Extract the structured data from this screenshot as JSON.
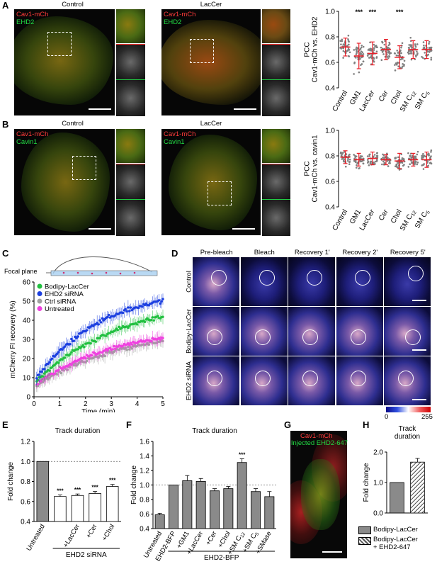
{
  "panels": {
    "A": {
      "label": "A",
      "control_title": "Control",
      "treat_title": "LacCer",
      "ch1": "Cav1-mCh",
      "ch2": "EHD2"
    },
    "B": {
      "label": "B",
      "control_title": "Control",
      "treat_title": "LacCer",
      "ch1": "Cav1-mCh",
      "ch2": "Cavin1"
    },
    "C": {
      "label": "C",
      "focal_plane": "Focal plane"
    },
    "D": {
      "label": "D",
      "columns": [
        "Pre-bleach",
        "Bleach",
        "Recovery 1'",
        "Recovery 2'",
        "Recovery 5'"
      ],
      "rows": [
        "Control",
        "Bodipy-LacCer",
        "EHD2 siRNA"
      ],
      "scale_min": "0",
      "scale_max": "255"
    },
    "E": {
      "label": "E",
      "title": "Track duration"
    },
    "F": {
      "label": "F",
      "title": "Track duration"
    },
    "G": {
      "label": "G",
      "ch1": "Cav1-mCh",
      "ch2": "Injected EHD2-647"
    },
    "H": {
      "label": "H",
      "title": "Track\nduration",
      "legend": [
        "Bodipy-LacCer",
        "Bodipy-LacCer\n+ EHD2-647"
      ]
    }
  },
  "colors": {
    "red": "#e8202a",
    "green": "#22c040",
    "blue": "#1c3fe0",
    "gray": "#a0a0a0",
    "magenta": "#f040e0",
    "bar_gray": "#8a8a8a",
    "dark_gray": "#666666"
  },
  "chart_data": [
    {
      "id": "A-scatter",
      "type": "scatter",
      "ylabel": "PCC\nCav1-mCh vs. EHD2",
      "categories": [
        "Control",
        "GM1",
        "LacCer",
        "Cer",
        "Chol",
        "SM C12",
        "SM C5"
      ],
      "category_labels": [
        [
          "Control"
        ],
        [
          "GM1"
        ],
        [
          "LacCer"
        ],
        [
          "Cer"
        ],
        [
          "Chol"
        ],
        [
          "SM C",
          "12"
        ],
        [
          "SM C",
          "5"
        ]
      ],
      "means": [
        0.72,
        0.65,
        0.67,
        0.7,
        0.64,
        0.7,
        0.7
      ],
      "sd": [
        0.07,
        0.1,
        0.09,
        0.08,
        0.09,
        0.07,
        0.07
      ],
      "significance": [
        "",
        "***",
        "***",
        "",
        "***",
        "",
        ""
      ],
      "ylim": [
        0.4,
        1.0
      ],
      "yticks": [
        0.4,
        0.6,
        0.8,
        1.0
      ]
    },
    {
      "id": "B-scatter",
      "type": "scatter",
      "ylabel": "PCC\nCav1-mCh vs. cavin1",
      "categories": [
        "Control",
        "GM1",
        "LacCer",
        "Cer",
        "Chol",
        "SM C12",
        "SM C5"
      ],
      "category_labels": [
        [
          "Control"
        ],
        [
          "GM1"
        ],
        [
          "LacCer"
        ],
        [
          "Cer"
        ],
        [
          "Chol"
        ],
        [
          "SM C",
          "12"
        ],
        [
          "SM C",
          "5"
        ]
      ],
      "means": [
        0.79,
        0.77,
        0.78,
        0.77,
        0.76,
        0.77,
        0.77
      ],
      "sd": [
        0.05,
        0.05,
        0.05,
        0.04,
        0.06,
        0.05,
        0.06
      ],
      "significance": [
        "",
        "",
        "",
        "",
        "",
        "",
        ""
      ],
      "ylim": [
        0.4,
        1.0
      ],
      "yticks": [
        0.4,
        0.6,
        0.8,
        1.0
      ]
    },
    {
      "id": "C-line",
      "type": "line",
      "xlabel": "Time (min)",
      "ylabel": "mCherry FI recovery (%)",
      "xlim": [
        0,
        5
      ],
      "ylim": [
        0,
        60
      ],
      "xticks": [
        0,
        1,
        2,
        3,
        4,
        5
      ],
      "yticks": [
        0,
        10,
        20,
        30,
        40,
        50,
        60
      ],
      "series": [
        {
          "name": "Bodipy-LacCer",
          "color": "#22c040",
          "plateau": 52,
          "k": 0.3,
          "start": 7
        },
        {
          "name": "EHD2 siRNA",
          "color": "#1c3fe0",
          "plateau": 58,
          "k": 0.38,
          "start": 8
        },
        {
          "name": "Ctrl siRNA",
          "color": "#a0a0a0",
          "plateau": 36,
          "k": 0.3,
          "start": 5
        },
        {
          "name": "Untreated",
          "color": "#f040e0",
          "plateau": 37,
          "k": 0.32,
          "start": 6
        }
      ]
    },
    {
      "id": "E-bar",
      "type": "bar",
      "title": "Track duration",
      "ylabel": "Fold change",
      "categories": [
        "Untreated",
        "",
        "+LacCer",
        "+Cer",
        "+Chol"
      ],
      "values": [
        1.0,
        0.65,
        0.66,
        0.68,
        0.75
      ],
      "errors": [
        0,
        0.015,
        0.015,
        0.02,
        0.02
      ],
      "significance": [
        "",
        "***",
        "***",
        "***",
        "***"
      ],
      "fills": [
        "#8a8a8a",
        "#ffffff",
        "#ffffff",
        "#ffffff",
        "#ffffff"
      ],
      "group_label": "EHD2 siRNA",
      "ylim": [
        0.4,
        1.2
      ],
      "yticks": [
        0.4,
        0.6,
        0.8,
        1.0,
        1.2
      ]
    },
    {
      "id": "F-bar",
      "type": "bar",
      "title": "Track duration",
      "ylabel": "Fold change",
      "categories": [
        "Untreated",
        "EHD2-BFP",
        "+GM1",
        "+LacCer",
        "+Cer",
        "+Chol",
        "+SM C12",
        "+SM C5",
        "+SMase"
      ],
      "category_labels": [
        [
          "Untreated"
        ],
        [
          "EHD2-BFP"
        ],
        [
          "+GM1"
        ],
        [
          "+LacCer"
        ],
        [
          "+Cer"
        ],
        [
          "+Chol"
        ],
        [
          "+SM C",
          "12"
        ],
        [
          "+SM C",
          "5"
        ],
        [
          "+SMase"
        ]
      ],
      "values": [
        0.59,
        1.0,
        1.06,
        1.05,
        0.92,
        0.95,
        1.31,
        0.91,
        0.84
      ],
      "errors": [
        0.02,
        0,
        0.07,
        0.04,
        0.03,
        0.03,
        0.05,
        0.04,
        0.07
      ],
      "significance": [
        "",
        "",
        "",
        "",
        "",
        "",
        "***",
        "",
        ""
      ],
      "fills": [
        "#8a8a8a",
        "#8a8a8a",
        "#8a8a8a",
        "#8a8a8a",
        "#8a8a8a",
        "#8a8a8a",
        "#8a8a8a",
        "#8a8a8a",
        "#8a8a8a"
      ],
      "group_label": "EHD2-BFP",
      "ylim": [
        0.4,
        1.6
      ],
      "yticks": [
        0.4,
        0.6,
        0.8,
        1.0,
        1.2,
        1.4,
        1.6
      ]
    },
    {
      "id": "H-bar",
      "type": "bar",
      "title": "Track\nduration",
      "ylabel": "Fold change",
      "categories": [
        "Bodipy-LacCer",
        "Bodipy-LacCer + EHD2-647"
      ],
      "values": [
        1.0,
        1.67
      ],
      "errors": [
        0,
        0.12
      ],
      "ylim": [
        0,
        2.0
      ],
      "yticks": [
        0,
        1.0,
        2.0
      ]
    }
  ]
}
